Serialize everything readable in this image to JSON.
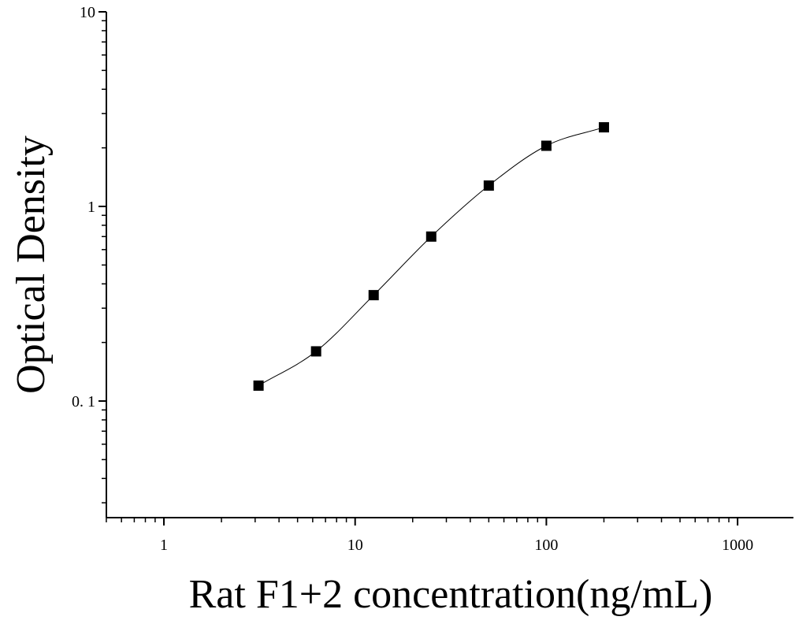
{
  "chart_data": {
    "type": "scatter",
    "x_scale": "log",
    "y_scale": "log",
    "xlabel": "Rat F1+2 concentration(ng/mL)",
    "ylabel": "Optical Density",
    "xlim": [
      0.5,
      2000
    ],
    "ylim": [
      0.025,
      10
    ],
    "x_tick_labels": [
      "1",
      "10",
      "100",
      "1000"
    ],
    "x_tick_values": [
      1,
      10,
      100,
      1000
    ],
    "y_tick_labels": [
      "0. 1",
      "1",
      "10"
    ],
    "y_tick_values": [
      0.1,
      1,
      10
    ],
    "grid": false,
    "series": [
      {
        "marker": "square",
        "color": "#000000",
        "x": [
          3.125,
          6.25,
          12.5,
          25,
          50,
          100,
          200
        ],
        "y": [
          0.12,
          0.18,
          0.35,
          0.7,
          1.28,
          2.05,
          2.55
        ]
      }
    ],
    "fit_curve": {
      "type": "4PL",
      "color": "#000000"
    }
  }
}
